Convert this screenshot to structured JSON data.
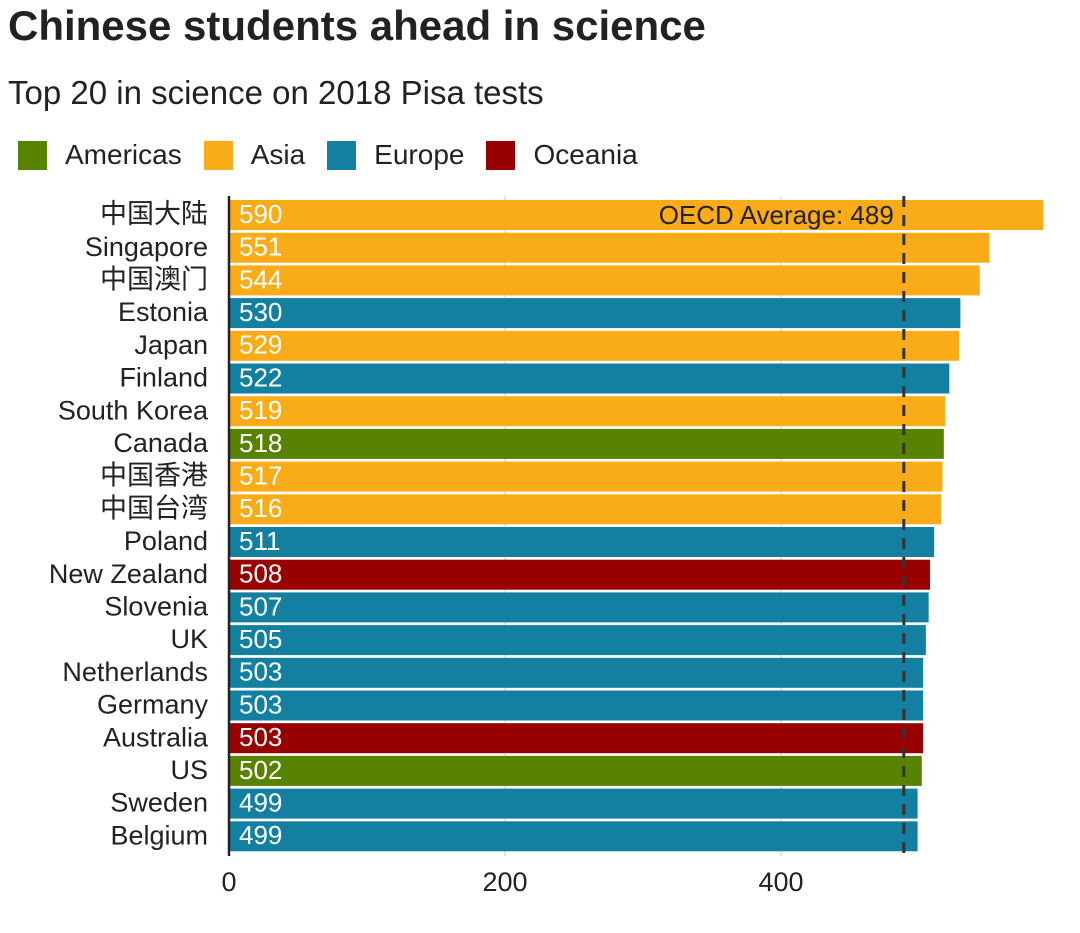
{
  "chart_data": {
    "type": "bar",
    "orientation": "horizontal",
    "title": "Chinese students ahead in science",
    "subtitle": "Top 20 in science on 2018 Pisa tests",
    "xlabel": "",
    "ylabel": "",
    "xlim": [
      0,
      590
    ],
    "x_ticks": [
      0,
      200,
      400
    ],
    "grid": true,
    "legend_position": "top-left",
    "reference_line": {
      "value": 489,
      "label": "OECD Average: 489"
    },
    "regions": [
      {
        "name": "Americas",
        "color": "#588300"
      },
      {
        "name": "Asia",
        "color": "#FAAB18"
      },
      {
        "name": "Europe",
        "color": "#1380A1"
      },
      {
        "name": "Oceania",
        "color": "#990000"
      }
    ],
    "categories": [
      "中国大陆",
      "Singapore",
      "中国澳门",
      "Estonia",
      "Japan",
      "Finland",
      "South Korea",
      "Canada",
      "中国香港",
      "中国台湾",
      "Poland",
      "New Zealand",
      "Slovenia",
      "UK",
      "Netherlands",
      "Germany",
      "Australia",
      "US",
      "Sweden",
      "Belgium"
    ],
    "values": [
      590,
      551,
      544,
      530,
      529,
      522,
      519,
      518,
      517,
      516,
      511,
      508,
      507,
      505,
      503,
      503,
      503,
      502,
      499,
      499
    ],
    "region_of_each": [
      "Asia",
      "Asia",
      "Asia",
      "Europe",
      "Asia",
      "Europe",
      "Asia",
      "Americas",
      "Asia",
      "Asia",
      "Europe",
      "Oceania",
      "Europe",
      "Europe",
      "Europe",
      "Europe",
      "Oceania",
      "Americas",
      "Europe",
      "Europe"
    ]
  }
}
